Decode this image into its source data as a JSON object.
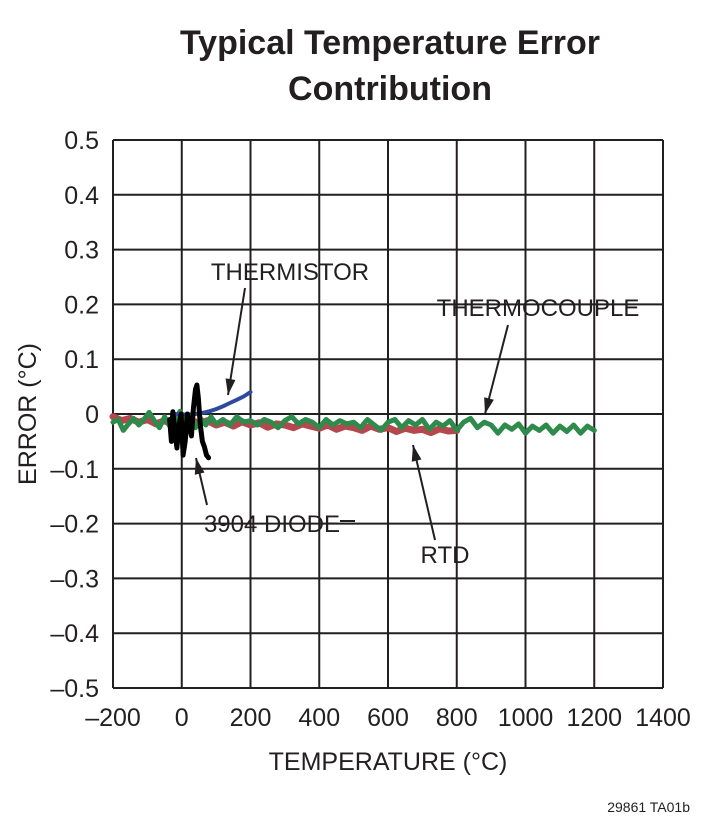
{
  "chart_data": {
    "type": "line",
    "title": [
      "Typical Temperature Error",
      "Contribution"
    ],
    "xlabel": "TEMPERATURE (°C)",
    "ylabel": "ERROR (°C)",
    "xlim": [
      -200,
      1400
    ],
    "ylim": [
      -0.5,
      0.5
    ],
    "grid": true,
    "x_ticks": [
      -200,
      0,
      200,
      400,
      600,
      800,
      1000,
      1200,
      1400
    ],
    "x_tick_labels": [
      "–200",
      "0",
      "200",
      "400",
      "600",
      "800",
      "1000",
      "1200",
      "1400"
    ],
    "y_ticks": [
      0.5,
      0.4,
      0.3,
      0.2,
      0.1,
      0,
      -0.1,
      -0.2,
      -0.3,
      -0.4,
      -0.5
    ],
    "y_tick_labels": [
      "0.5",
      "0.4",
      "0.3",
      "0.2",
      "0.1",
      "0",
      "–0.1",
      "–0.2",
      "–0.3",
      "–0.4",
      "–0.5"
    ],
    "series": [
      {
        "name": "RTD",
        "color": "#b5484e",
        "x": [
          -200,
          -175,
          -150,
          -125,
          -100,
          -75,
          -50,
          -25,
          0,
          25,
          50,
          75,
          100,
          125,
          150,
          175,
          200,
          225,
          250,
          275,
          300,
          325,
          350,
          375,
          400,
          425,
          450,
          475,
          500,
          525,
          550,
          575,
          600,
          625,
          650,
          675,
          700,
          725,
          750,
          775,
          800
        ],
        "y": [
          -0.005,
          -0.012,
          -0.008,
          -0.015,
          -0.01,
          -0.018,
          -0.012,
          -0.02,
          -0.015,
          -0.01,
          -0.018,
          -0.012,
          -0.02,
          -0.015,
          -0.022,
          -0.014,
          -0.02,
          -0.016,
          -0.024,
          -0.018,
          -0.02,
          -0.025,
          -0.018,
          -0.022,
          -0.026,
          -0.02,
          -0.028,
          -0.022,
          -0.025,
          -0.03,
          -0.022,
          -0.028,
          -0.025,
          -0.032,
          -0.026,
          -0.03,
          -0.028,
          -0.034,
          -0.027,
          -0.031,
          -0.03
        ]
      },
      {
        "name": "THERMOCOUPLE",
        "color": "#2e8b4b",
        "x": [
          -200,
          -185,
          -170,
          -155,
          -140,
          -125,
          -110,
          -95,
          -80,
          -65,
          -50,
          -35,
          -20,
          -5,
          10,
          25,
          40,
          55,
          70,
          85,
          100,
          120,
          140,
          160,
          180,
          200,
          220,
          240,
          260,
          280,
          300,
          320,
          340,
          360,
          380,
          400,
          420,
          440,
          460,
          480,
          500,
          520,
          540,
          560,
          580,
          600,
          620,
          640,
          660,
          680,
          700,
          720,
          740,
          760,
          780,
          800,
          820,
          840,
          860,
          880,
          900,
          920,
          940,
          960,
          980,
          1000,
          1020,
          1040,
          1060,
          1080,
          1100,
          1120,
          1140,
          1160,
          1180,
          1200
        ],
        "y": [
          -0.015,
          -0.01,
          -0.03,
          -0.018,
          -0.008,
          -0.02,
          -0.01,
          0.003,
          -0.012,
          -0.025,
          -0.005,
          -0.022,
          -0.015,
          0.005,
          -0.012,
          -0.01,
          -0.025,
          -0.008,
          -0.02,
          -0.005,
          -0.018,
          -0.01,
          -0.02,
          -0.005,
          -0.015,
          -0.012,
          -0.02,
          -0.01,
          -0.015,
          -0.025,
          -0.012,
          -0.005,
          -0.018,
          -0.01,
          -0.015,
          -0.025,
          -0.01,
          -0.02,
          -0.012,
          -0.018,
          -0.015,
          -0.025,
          -0.01,
          -0.02,
          -0.03,
          -0.015,
          -0.01,
          -0.025,
          -0.012,
          -0.02,
          -0.01,
          -0.028,
          -0.015,
          -0.022,
          -0.012,
          -0.03,
          -0.015,
          -0.008,
          -0.025,
          -0.015,
          -0.02,
          -0.035,
          -0.02,
          -0.028,
          -0.018,
          -0.035,
          -0.022,
          -0.03,
          -0.02,
          -0.035,
          -0.022,
          -0.032,
          -0.02,
          -0.035,
          -0.022,
          -0.03
        ]
      },
      {
        "name": "THERMISTOR",
        "color": "#2e4a9e",
        "x": [
          -20,
          0,
          20,
          40,
          60,
          80,
          100,
          120,
          140,
          160,
          180,
          200
        ],
        "y": [
          0.0,
          -0.001,
          -0.001,
          0.0,
          0.002,
          0.005,
          0.009,
          0.014,
          0.02,
          0.026,
          0.032,
          0.04
        ]
      },
      {
        "name": "3904 DIODE",
        "color": "#000000",
        "x": [
          -35,
          -30,
          -26,
          -20,
          -14,
          -8,
          -2,
          4,
          10,
          16,
          22,
          28,
          34,
          40,
          44,
          48,
          54,
          60,
          66,
          72,
          78
        ],
        "y": [
          -0.01,
          -0.05,
          0.004,
          -0.03,
          -0.062,
          -0.02,
          0.0,
          -0.075,
          -0.05,
          0.0,
          -0.02,
          -0.04,
          0.01,
          0.045,
          0.053,
          0.03,
          -0.02,
          -0.05,
          -0.06,
          -0.075,
          -0.08
        ]
      }
    ],
    "annotations": [
      "THERMISTOR",
      "THERMOCOUPLE",
      "3904 DIODE",
      "RTD"
    ]
  },
  "footer": "29861 TA01b"
}
